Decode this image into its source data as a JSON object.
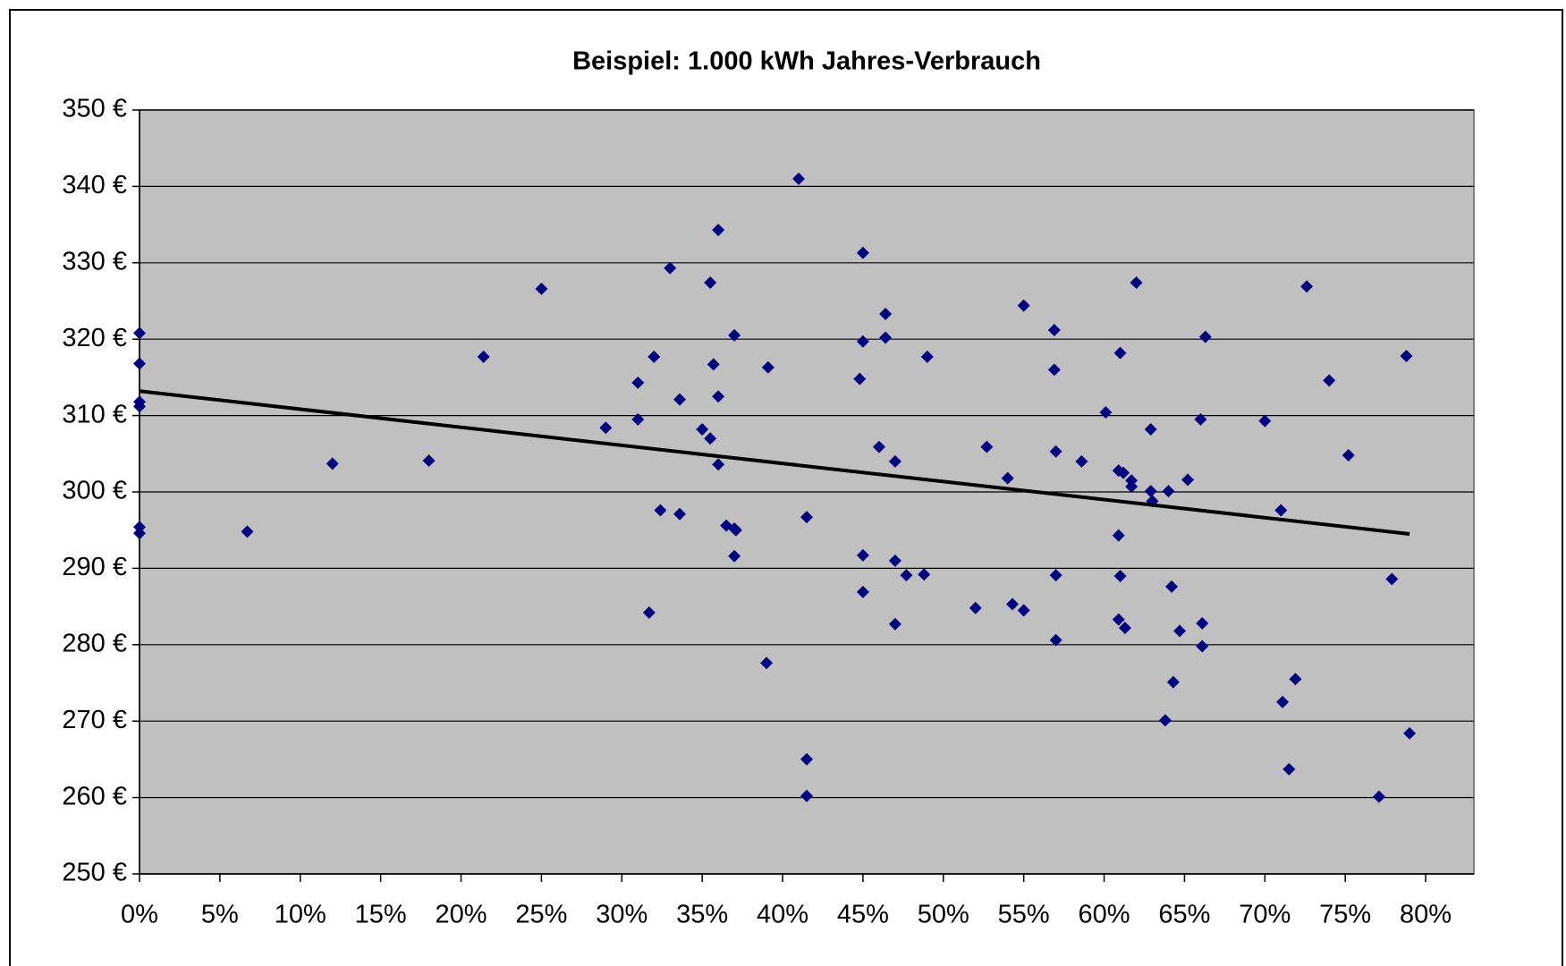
{
  "chart_data": {
    "type": "scatter",
    "title": "Beispiel: 1.000 kWh Jahres-Verbrauch",
    "series": [
      {
        "color": "#000080",
        "x": [
          0,
          0,
          0,
          0,
          0,
          0,
          6.7,
          12.0,
          18.0,
          21.4,
          25.0,
          29.0,
          31.0,
          31.0,
          31.7,
          32.0,
          32.4,
          33.0,
          33.6,
          33.6,
          35.0,
          35.5,
          35.5,
          35.7,
          36.0,
          36.0,
          36.0,
          36.5,
          37.0,
          37.0,
          37.1,
          37.0,
          39.0,
          39.1,
          41.0,
          41.5,
          41.5,
          41.5,
          45.0,
          45.0,
          44.8,
          45.0,
          45.0,
          46.4,
          46.4,
          46.0,
          47.0,
          47.0,
          47.7,
          47.0,
          49.0,
          48.8,
          52.0,
          52.7,
          54.0,
          54.3,
          55.0,
          55.0,
          56.9,
          56.9,
          57.0,
          57.0,
          57.0,
          58.6,
          60.1,
          61.0,
          60.9,
          61.2,
          61.7,
          61.7,
          60.9,
          61.0,
          60.9,
          61.3,
          62.0,
          62.9,
          62.9,
          63.0,
          64.0,
          64.2,
          63.8,
          64.3,
          64.7,
          65.2,
          66.0,
          66.3,
          66.1,
          66.1,
          70.0,
          71.0,
          71.1,
          71.5,
          71.9,
          72.6,
          74.0,
          75.2,
          77.1,
          77.9,
          78.8,
          79.0
        ],
        "values": [
          320.8,
          316.8,
          311.8,
          311.2,
          295.4,
          294.6,
          294.8,
          303.7,
          304.1,
          317.7,
          326.6,
          308.4,
          314.3,
          309.5,
          284.2,
          317.7,
          297.6,
          329.3,
          312.1,
          297.1,
          308.2,
          327.4,
          307.0,
          316.7,
          334.3,
          312.5,
          303.6,
          295.6,
          320.5,
          295.2,
          295.0,
          291.6,
          277.6,
          316.3,
          341.0,
          296.7,
          265.0,
          260.2,
          331.3,
          319.7,
          314.8,
          291.7,
          286.9,
          323.3,
          320.2,
          305.9,
          304.0,
          291.0,
          289.1,
          282.7,
          317.7,
          289.2,
          284.8,
          305.9,
          301.8,
          285.3,
          324.4,
          284.5,
          321.2,
          316.0,
          305.3,
          289.1,
          280.6,
          304.0,
          310.4,
          318.2,
          302.8,
          302.5,
          301.5,
          300.7,
          294.3,
          289.0,
          283.3,
          282.2,
          327.4,
          308.2,
          300.1,
          298.8,
          300.1,
          287.6,
          270.1,
          275.1,
          281.8,
          301.6,
          309.5,
          320.3,
          282.8,
          279.8,
          309.3,
          297.6,
          272.5,
          263.7,
          275.5,
          326.9,
          314.6,
          304.8,
          260.1,
          288.6,
          317.8,
          268.4
        ]
      }
    ],
    "trendline": {
      "x": [
        0,
        79
      ],
      "values": [
        313.2,
        294.5
      ],
      "color": "#000000"
    },
    "xlim": [
      0,
      83
    ],
    "xticks": [
      {
        "value": 0,
        "label": "0%"
      },
      {
        "value": 5,
        "label": "5%"
      },
      {
        "value": 10,
        "label": "10%"
      },
      {
        "value": 15,
        "label": "15%"
      },
      {
        "value": 20,
        "label": "20%"
      },
      {
        "value": 25,
        "label": "25%"
      },
      {
        "value": 30,
        "label": "30%"
      },
      {
        "value": 35,
        "label": "35%"
      },
      {
        "value": 40,
        "label": "40%"
      },
      {
        "value": 45,
        "label": "45%"
      },
      {
        "value": 50,
        "label": "50%"
      },
      {
        "value": 55,
        "label": "55%"
      },
      {
        "value": 60,
        "label": "60%"
      },
      {
        "value": 65,
        "label": "65%"
      },
      {
        "value": 70,
        "label": "70%"
      },
      {
        "value": 75,
        "label": "75%"
      },
      {
        "value": 80,
        "label": "80%"
      }
    ],
    "ylim": [
      250,
      350
    ],
    "yticks": [
      {
        "value": 250,
        "label": "250 €"
      },
      {
        "value": 260,
        "label": "260 €"
      },
      {
        "value": 270,
        "label": "270 €"
      },
      {
        "value": 280,
        "label": "280 €"
      },
      {
        "value": 290,
        "label": "290 €"
      },
      {
        "value": 300,
        "label": "300 €"
      },
      {
        "value": 310,
        "label": "310 €"
      },
      {
        "value": 320,
        "label": "320 €"
      },
      {
        "value": 330,
        "label": "330 €"
      },
      {
        "value": 340,
        "label": "340 €"
      },
      {
        "value": 350,
        "label": "350 €"
      }
    ],
    "grid": true,
    "background": "#c0c0c0"
  }
}
